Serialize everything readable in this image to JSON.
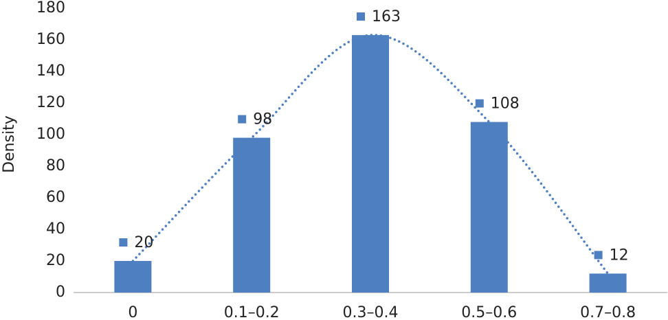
{
  "chart_data": {
    "type": "bar",
    "y_label": "Density",
    "categories": [
      "0",
      "0.1–0.2",
      "0.3–0.4",
      "0.5–0.6",
      "0.7–0.8"
    ],
    "values": [
      20,
      98,
      163,
      108,
      12
    ],
    "color": "#4e7fc0",
    "ylim": [
      0,
      180
    ],
    "yticks": [
      0,
      20,
      40,
      60,
      80,
      100,
      120,
      140,
      160,
      180
    ],
    "grid": false,
    "data_labels": true,
    "trendline": true
  }
}
